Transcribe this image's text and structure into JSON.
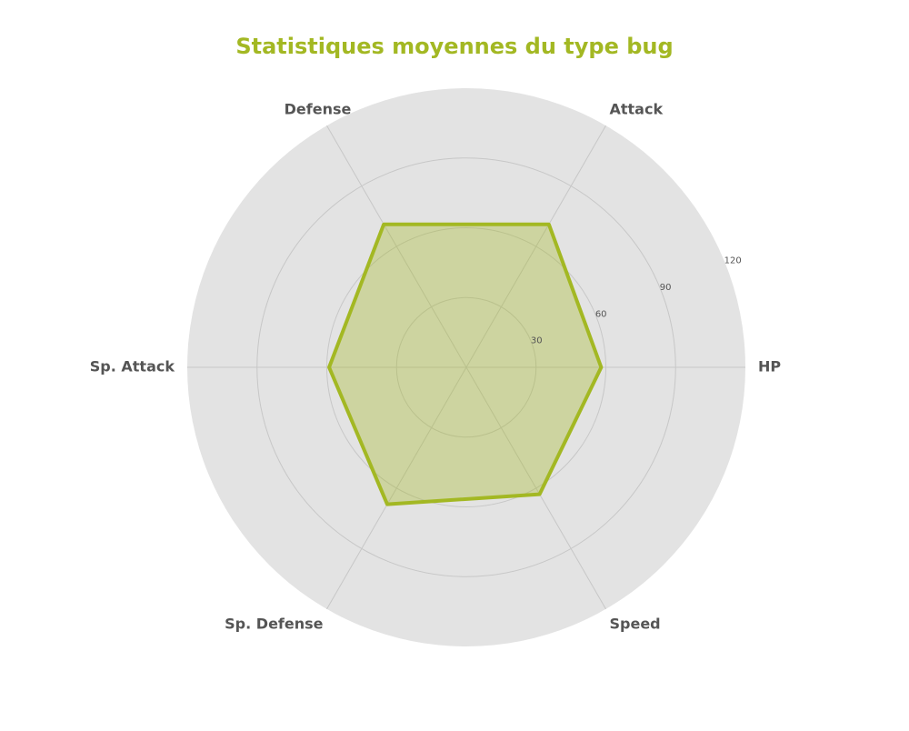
{
  "chart_data": {
    "type": "radar",
    "title": "Statistiques moyennes du type bug",
    "axes": [
      "HP",
      "Attack",
      "Defense",
      "Sp. Attack",
      "Sp. Defense",
      "Speed"
    ],
    "series": [
      {
        "values": [
          58,
          71,
          71,
          59,
          68,
          63
        ]
      }
    ],
    "rticks": [
      30,
      60,
      90,
      120
    ],
    "rlim": [
      0,
      120
    ],
    "grid": true,
    "colors": {
      "accent": "#a3b823",
      "fill": "#a3b823",
      "background": "#e3e3e3",
      "grid": "#c7c7c7",
      "label": "#555555",
      "tick": "#555555"
    }
  }
}
